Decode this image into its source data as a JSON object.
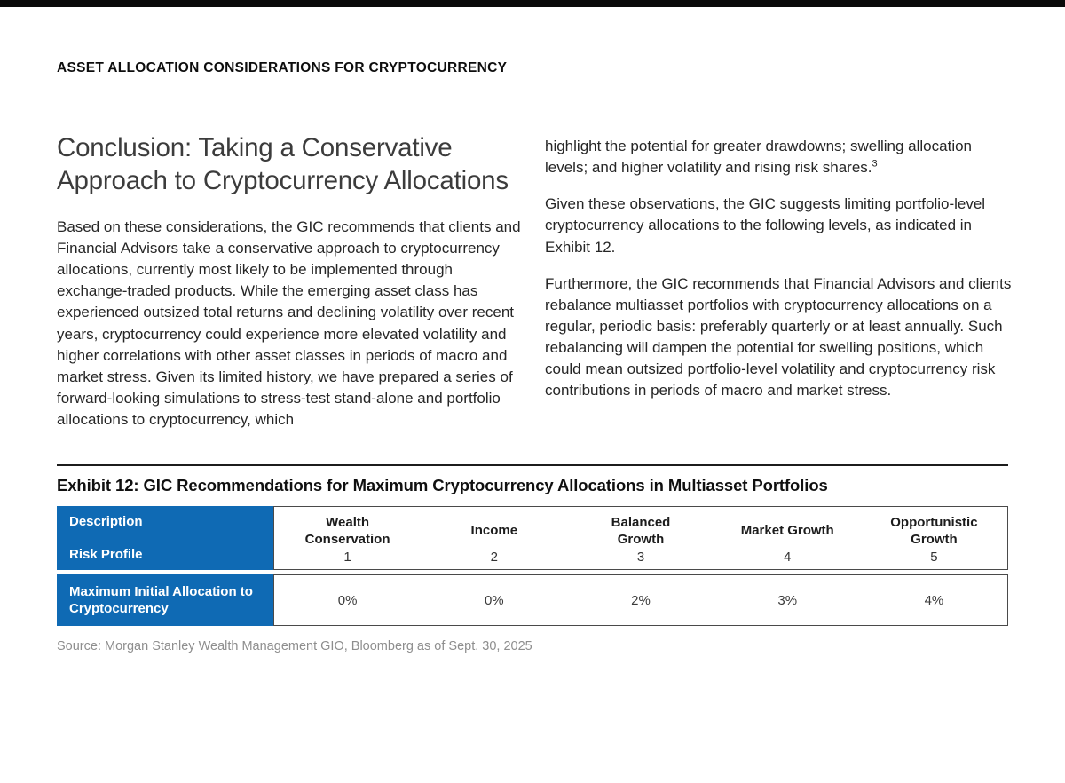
{
  "doc": {
    "eyebrow": "ASSET ALLOCATION CONSIDERATIONS FOR CRYPTOCURRENCY",
    "title": "Conclusion: Taking a Conservative Approach to Cryptocurrency Allocations",
    "left_column": {
      "paragraph": "Based on these considerations, the GIC recommends that clients and Financial Advisors take a conservative approach to cryptocurrency allocations, currently most likely to be implemented through exchange-traded products. While the emerging asset class has experienced outsized total returns and declining volatility over recent years, cryptocurrency could experience more elevated volatility and higher correlations with other asset classes in periods of macro and market stress. Given its limited history, we have prepared a series of forward-looking simulations to stress-test stand-alone and portfolio allocations to cryptocurrency, which"
    },
    "right_column": {
      "paragraph_1": "highlight the potential for greater drawdowns; swelling allocation levels; and higher volatility and rising risk shares.",
      "footnote_marker": "3",
      "paragraph_2": "Given these observations, the GIC suggests limiting portfolio-level cryptocurrency allocations to the following levels, as indicated in Exhibit 12.",
      "paragraph_3": "Furthermore, the GIC recommends that Financial Advisors and clients rebalance multiasset portfolios with cryptocurrency allocations on a regular, periodic basis: preferably quarterly or at least annually. Such rebalancing will dampen the potential for swelling positions, which could mean outsized portfolio-level volatility and cryptocurrency risk contributions in periods of macro and market stress."
    }
  },
  "exhibit": {
    "title": "Exhibit 12: GIC Recommendations for Maximum Cryptocurrency Allocations in Multiasset Portfolios",
    "table": {
      "row_labels": {
        "description": "Description",
        "risk_profile": "Risk Profile",
        "allocation": "Maximum Initial Allocation to Cryptocurrency"
      },
      "columns": [
        {
          "description": "Wealth Conservation",
          "risk_profile": "1",
          "allocation": "0%"
        },
        {
          "description": "Income",
          "risk_profile": "2",
          "allocation": "0%"
        },
        {
          "description": "Balanced Growth",
          "risk_profile": "3",
          "allocation": "2%"
        },
        {
          "description": "Market Growth",
          "risk_profile": "4",
          "allocation": "3%"
        },
        {
          "description": "Opportunistic Growth",
          "risk_profile": "5",
          "allocation": "4%"
        }
      ]
    },
    "source": "Source: Morgan Stanley Wealth Management GIO, Bloomberg as of Sept. 30, 2025"
  },
  "colors": {
    "table_header_blue": "#0f6ab4",
    "top_bar_black": "#0a0a0a",
    "source_gray": "#8e8e8e"
  }
}
